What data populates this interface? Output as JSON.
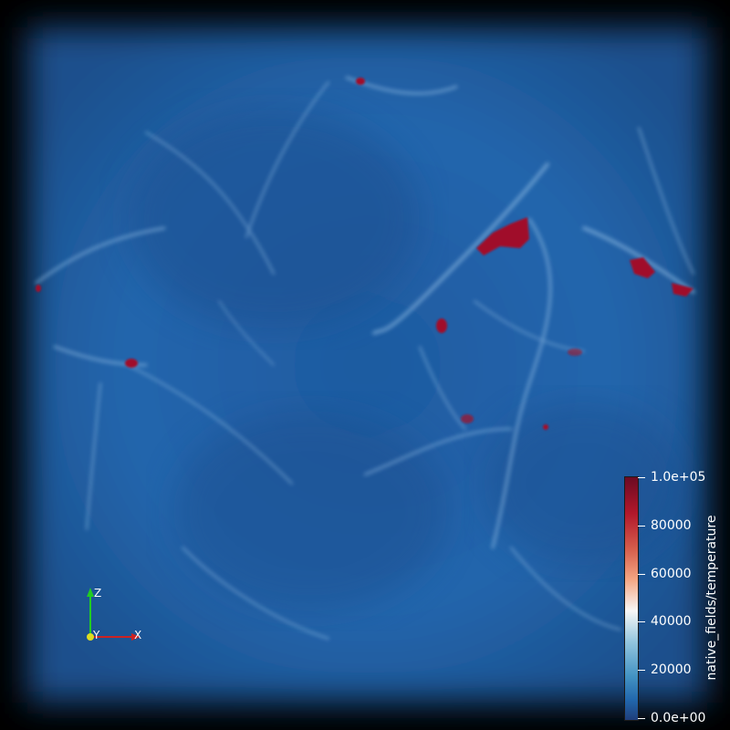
{
  "colorbar": {
    "title": "native_fields/temperature",
    "ticks": [
      "1.0e+05",
      "80000",
      "60000",
      "40000",
      "20000",
      "0.0e+00"
    ],
    "range": [
      0,
      100000
    ],
    "colors": {
      "high": "#b2182b",
      "mid": "#f7f7f7",
      "low": "#2166ac"
    }
  },
  "axes_widget": {
    "z": "Z",
    "y": "Y",
    "x": "X"
  },
  "colors": {
    "background": "#000000",
    "volume_base": "#1f5fa6",
    "hot_region": "#a0102a"
  }
}
